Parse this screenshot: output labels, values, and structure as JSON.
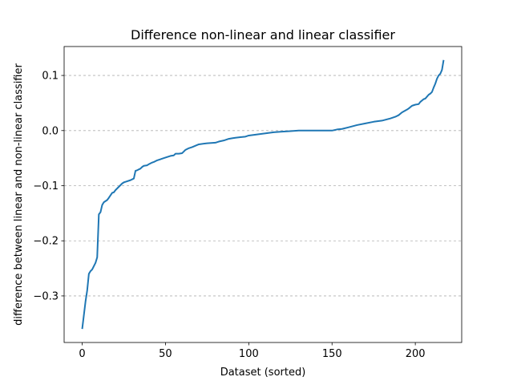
{
  "chart_data": {
    "type": "line",
    "title": "Difference non-linear and linear classifier",
    "xlabel": "Dataset (sorted)",
    "ylabel": "difference between linear and non-linear classifier",
    "xlim": [
      -10.85,
      227.85
    ],
    "ylim": [
      -0.3845,
      0.1525
    ],
    "x_ticks": [
      0,
      50,
      100,
      150,
      200
    ],
    "x_tick_labels": [
      "0",
      "50",
      "100",
      "150",
      "200"
    ],
    "y_ticks": [
      -0.3,
      -0.2,
      -0.1,
      0.0,
      0.1
    ],
    "y_tick_labels": [
      "−0.3",
      "−0.2",
      "−0.1",
      "0.0",
      "0.1"
    ],
    "grid": "y-dashed",
    "line_color": "#1f77b4",
    "series": [
      {
        "x": [
          0,
          1,
          2,
          3,
          4,
          5,
          6,
          8,
          9,
          10,
          11,
          12,
          13,
          15,
          16,
          18,
          19,
          20,
          22,
          24,
          25,
          26,
          29,
          31,
          32,
          33,
          35,
          36,
          37,
          39,
          40,
          42,
          43,
          45,
          47,
          48,
          50,
          53,
          55,
          56,
          58,
          60,
          61,
          62,
          64,
          66,
          70,
          75,
          80,
          82,
          85,
          88,
          90,
          92,
          95,
          98,
          100,
          105,
          110,
          115,
          120,
          125,
          130,
          135,
          140,
          145,
          150,
          153,
          156,
          160,
          165,
          170,
          175,
          180,
          185,
          188,
          190,
          192,
          195,
          196,
          198,
          200,
          202,
          203,
          205,
          206,
          208,
          209,
          210,
          211,
          212,
          213,
          214,
          215,
          216,
          217
        ],
        "y": [
          -0.36,
          -0.335,
          -0.31,
          -0.29,
          -0.26,
          -0.255,
          -0.252,
          -0.24,
          -0.23,
          -0.152,
          -0.148,
          -0.135,
          -0.13,
          -0.126,
          -0.122,
          -0.113,
          -0.112,
          -0.108,
          -0.102,
          -0.096,
          -0.094,
          -0.093,
          -0.09,
          -0.087,
          -0.073,
          -0.072,
          -0.069,
          -0.066,
          -0.064,
          -0.063,
          -0.061,
          -0.058,
          -0.057,
          -0.054,
          -0.052,
          -0.051,
          -0.049,
          -0.046,
          -0.045,
          -0.042,
          -0.042,
          -0.041,
          -0.038,
          -0.035,
          -0.032,
          -0.03,
          -0.025,
          -0.023,
          -0.022,
          -0.02,
          -0.018,
          -0.015,
          -0.014,
          -0.013,
          -0.012,
          -0.011,
          -0.009,
          -0.007,
          -0.005,
          -0.003,
          -0.002,
          -0.001,
          0.0,
          0.0,
          0.0,
          0.0,
          0.0,
          0.002,
          0.003,
          0.006,
          0.01,
          0.013,
          0.016,
          0.018,
          0.022,
          0.025,
          0.028,
          0.033,
          0.038,
          0.04,
          0.045,
          0.047,
          0.048,
          0.052,
          0.057,
          0.058,
          0.065,
          0.067,
          0.07,
          0.078,
          0.085,
          0.094,
          0.1,
          0.103,
          0.11,
          0.128
        ]
      }
    ]
  }
}
